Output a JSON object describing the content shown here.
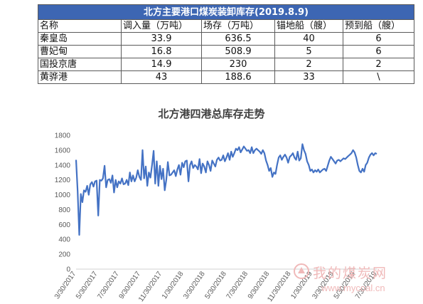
{
  "table": {
    "title": "北方主要港口煤炭装卸库存(2019.8.9)",
    "headers": [
      "名称",
      "调入量（万吨）",
      "场存（万吨）",
      "锚地船（艘）",
      "预到船（艘）"
    ],
    "rows": [
      [
        "秦皇岛",
        "33.9",
        "636.5",
        "40",
        "6"
      ],
      [
        "曹妃甸",
        "16.8",
        "508.9",
        "5",
        "6"
      ],
      [
        "国投京唐",
        "14.9",
        "230",
        "2",
        "2"
      ],
      [
        "黄骅港",
        "43",
        "188.6",
        "33",
        "\\"
      ]
    ]
  },
  "chart_data": {
    "type": "line",
    "title": "北方港四港总库存走势",
    "xlabel": "",
    "ylabel": "",
    "ylim": [
      0,
      1800
    ],
    "yticks": [
      0,
      200,
      400,
      600,
      800,
      1000,
      1200,
      1400,
      1600,
      1800
    ],
    "xticks": [
      "3/30/2017",
      "5/30/2017",
      "7/30/2017",
      "9/30/2017",
      "11/30/2017",
      "1/30/2018",
      "3/30/2018",
      "5/30/2018",
      "7/30/2018",
      "9/30/2018",
      "11/30/2018",
      "1/30/2019",
      "3/30/2019",
      "5/30/2019",
      "7/30/2019"
    ],
    "grid": false,
    "line_color": "#4472c4",
    "series": [
      {
        "values": [
          1470,
          1050,
          460,
          1010,
          900,
          1060,
          1040,
          1120,
          1000,
          1140,
          1170,
          1110,
          1180,
          1190,
          720,
          1200,
          1190,
          1220,
          1390,
          1100,
          1200,
          1210,
          1160,
          1260,
          1030,
          1200,
          1100,
          1180,
          1150,
          1220,
          1140,
          1150,
          1200,
          1130,
          1300,
          1180,
          1260,
          1180,
          1230,
          1330,
          1240,
          1200,
          1600,
          1220,
          1380,
          1120,
          1300,
          1230,
          1400,
          1590,
          1150,
          1450,
          1120,
          1390,
          1210,
          1350,
          1060,
          1200,
          1440,
          1260,
          1270,
          1300,
          1330,
          1250,
          1340,
          1400,
          1270,
          1430,
          1370,
          1450,
          1460,
          1180,
          1400,
          1450,
          1360,
          1400,
          1380,
          1340,
          1480,
          1290,
          1420,
          1380,
          1300,
          1450,
          1400,
          1320,
          1460,
          1420,
          1380,
          1470,
          1500,
          1460,
          1470,
          1530,
          1450,
          1500,
          1560,
          1470,
          1580,
          1510,
          1560,
          1620,
          1600,
          1640,
          1570,
          1610,
          1650,
          1620,
          1590,
          1600,
          1560,
          1640,
          1560,
          1600,
          1620,
          1600,
          1580,
          1550,
          1600,
          1560,
          1460,
          1400,
          1320,
          1360,
          1240,
          1300,
          1280,
          1400,
          1500,
          1530,
          1470,
          1510,
          1540,
          1500,
          1430,
          1510,
          1530,
          1560,
          1500,
          1470,
          1580,
          1460,
          1490,
          1680,
          1600,
          1550,
          1450,
          1400,
          1320,
          1340,
          1300,
          1330,
          1310,
          1340,
          1300,
          1320,
          1340,
          1350,
          1320,
          1390,
          1460,
          1510,
          1480,
          1450,
          1420,
          1460,
          1470,
          1450,
          1470,
          1490,
          1480,
          1500,
          1520,
          1540,
          1560,
          1600,
          1570,
          1500,
          1400,
          1320,
          1300,
          1350,
          1310,
          1400,
          1430,
          1500,
          1540,
          1560,
          1530,
          1560,
          1550
        ]
      }
    ]
  },
  "watermark": {
    "text_cn": "我的煤炭网",
    "text_url": "www.mycoal.cn"
  }
}
